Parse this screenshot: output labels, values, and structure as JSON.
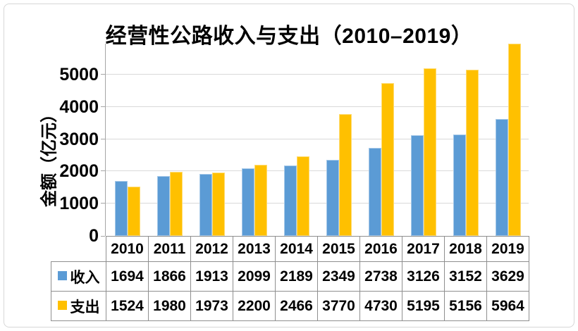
{
  "chart_data": {
    "type": "bar",
    "title": "经营性公路收入与支出（2010–2019）",
    "ylabel": "金额（亿元）",
    "categories": [
      "2010",
      "2011",
      "2012",
      "2013",
      "2014",
      "2015",
      "2016",
      "2017",
      "2018",
      "2019"
    ],
    "series": [
      {
        "name": "收入",
        "color": "#5B9BD5",
        "values": [
          1694,
          1866,
          1913,
          2099,
          2189,
          2349,
          2738,
          3126,
          3152,
          3629
        ]
      },
      {
        "name": "支出",
        "color": "#FFC000",
        "values": [
          1524,
          1980,
          1973,
          2200,
          2466,
          3770,
          4730,
          5195,
          5156,
          5964
        ]
      }
    ],
    "yticks": [
      0,
      1000,
      2000,
      3000,
      4000,
      5000
    ],
    "ylim": [
      0,
      6000
    ],
    "grid": true,
    "legend_position": "table-left"
  },
  "colors": {
    "income_blue": "#5B9BD5",
    "expense_yellow": "#FFC000",
    "gridline": "#d9d9d9",
    "axis": "#a6a6a6",
    "table_border": "#8f8f8f",
    "frame_border": "#d7d7d7",
    "text": "#000000"
  }
}
